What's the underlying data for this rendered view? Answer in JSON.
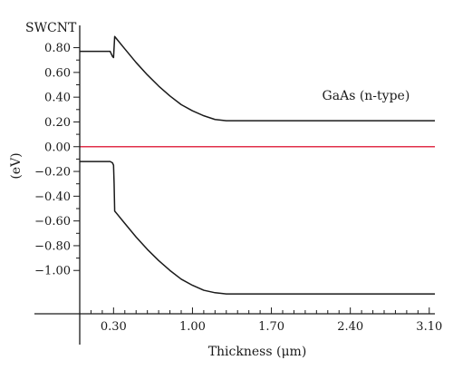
{
  "chart_data": {
    "type": "line",
    "xlabel": "Thickness (μm)",
    "ylabel": "(eV)",
    "xlim": [
      0.0,
      3.15
    ],
    "ylim": [
      -1.35,
      0.98
    ],
    "x_ticks": [
      0.3,
      1.0,
      1.7,
      2.4,
      3.1
    ],
    "x_tick_labels": [
      "0.30",
      "1.00",
      "1.70",
      "2.40",
      "3.10"
    ],
    "y_ticks": [
      0.8,
      0.6,
      0.4,
      0.2,
      0.0,
      -0.2,
      -0.4,
      -0.6,
      -0.8,
      -1.0
    ],
    "y_tick_labels": [
      "0.80",
      "0.60",
      "0.40",
      "0.20",
      "0.00",
      "−0.20",
      "−0.40",
      "−0.60",
      "−0.80",
      "−1.00"
    ],
    "grid": false,
    "annotations": [
      {
        "text": "SWCNT",
        "x": 0.0,
        "y": 0.93
      },
      {
        "text": "GaAs (n-type)",
        "x": 2.15,
        "y": 0.38
      }
    ],
    "series": [
      {
        "color": "#1a1a1a",
        "x": [
          0.0,
          0.27,
          0.28,
          0.29,
          0.3,
          0.31,
          0.4,
          0.5,
          0.6,
          0.7,
          0.8,
          0.9,
          1.0,
          1.1,
          1.2,
          1.3,
          1.4,
          3.15
        ],
        "y": [
          0.77,
          0.77,
          0.75,
          0.73,
          0.72,
          0.89,
          0.79,
          0.68,
          0.58,
          0.49,
          0.41,
          0.34,
          0.29,
          0.25,
          0.22,
          0.21,
          0.21,
          0.21
        ]
      },
      {
        "color": "#e0304a",
        "x": [
          0.0,
          3.15
        ],
        "y": [
          0.0,
          0.0
        ]
      },
      {
        "color": "#1a1a1a",
        "x": [
          0.0,
          0.27,
          0.29,
          0.3,
          0.305,
          0.31,
          0.4,
          0.5,
          0.6,
          0.7,
          0.8,
          0.9,
          1.0,
          1.1,
          1.2,
          1.3,
          1.4,
          3.15
        ],
        "y": [
          -0.12,
          -0.12,
          -0.13,
          -0.15,
          -0.3,
          -0.52,
          -0.62,
          -0.73,
          -0.83,
          -0.92,
          -1.0,
          -1.07,
          -1.12,
          -1.16,
          -1.18,
          -1.19,
          -1.19,
          -1.19
        ]
      }
    ]
  }
}
